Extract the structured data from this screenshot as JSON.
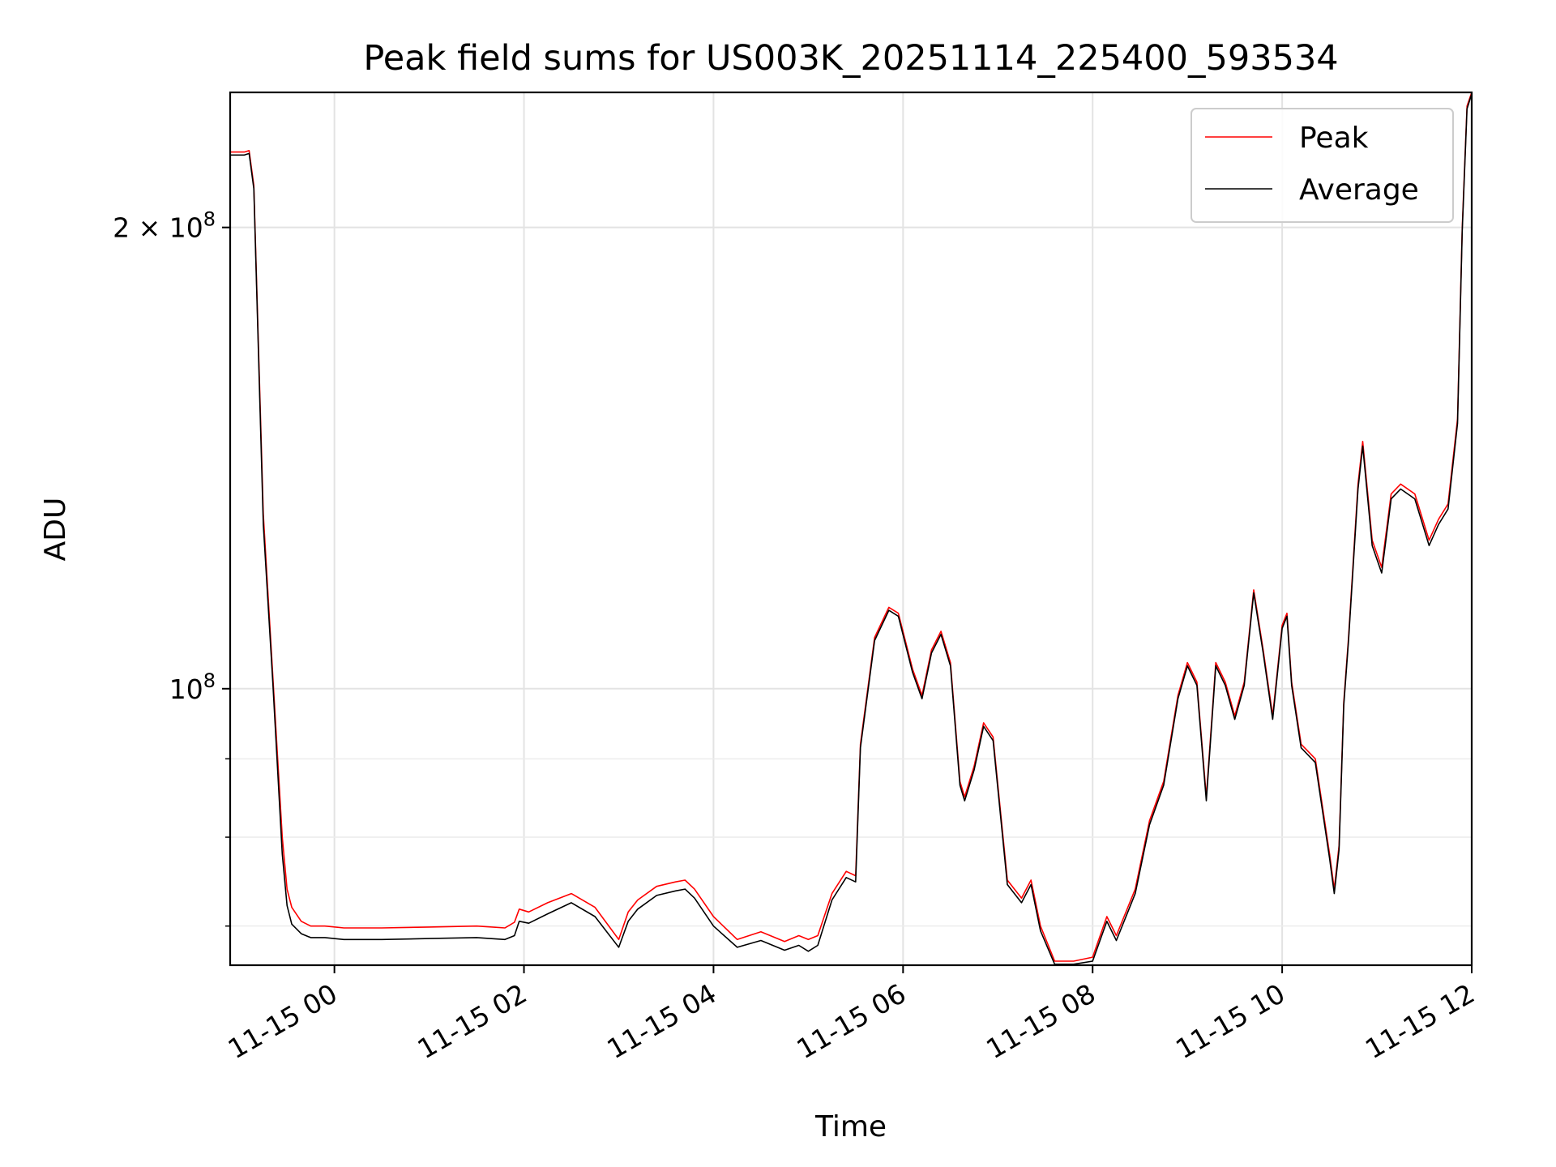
{
  "chart_data": {
    "type": "line",
    "title": "Peak field sums for US003K_20251114_225400_593534",
    "xlabel": "Time",
    "ylabel": "ADU",
    "y_scale": "log",
    "grid": true,
    "legend_position": "top-right",
    "xlim": [
      "11-14 22:54",
      "11-15 12:00"
    ],
    "ylim": [
      66000000,
      245000000
    ],
    "x_ticks": [
      "11-15 00",
      "11-15 02",
      "11-15 04",
      "11-15 06",
      "11-15 08",
      "11-15 10",
      "11-15 12"
    ],
    "x_tick_hours": [
      0,
      2,
      4,
      6,
      8,
      10,
      12
    ],
    "y_major_ticks": [
      {
        "value": 100000000,
        "base": "10",
        "exp": "8",
        "coef": ""
      },
      {
        "value": 200000000,
        "base": "10",
        "exp": "8",
        "coef": "2 × "
      }
    ],
    "y_minor_ticks": [
      70000000,
      80000000,
      90000000
    ],
    "time_x": [
      "11-14 22:54",
      "11-14 23:03",
      "11-14 23:06",
      "11-14 23:09",
      "11-14 23:15",
      "11-14 23:21",
      "11-14 23:27",
      "11-14 23:30",
      "11-14 23:33",
      "11-14 23:39",
      "11-14 23:45",
      "11-14 23:54",
      "11-15 00:06",
      "11-15 00:30",
      "11-15 01:00",
      "11-15 01:30",
      "11-15 01:48",
      "11-15 01:54",
      "11-15 01:57",
      "11-15 02:03",
      "11-15 02:15",
      "11-15 02:30",
      "11-15 02:45",
      "11-15 03:00",
      "11-15 03:06",
      "11-15 03:12",
      "11-15 03:24",
      "11-15 03:36",
      "11-15 03:42",
      "11-15 03:48",
      "11-15 04:00",
      "11-15 04:15",
      "11-15 04:30",
      "11-15 04:45",
      "11-15 04:54",
      "11-15 05:00",
      "11-15 05:06",
      "11-15 05:15",
      "11-15 05:24",
      "11-15 05:30",
      "11-15 05:33",
      "11-15 05:42",
      "11-15 05:51",
      "11-15 05:57",
      "11-15 06:06",
      "11-15 06:12",
      "11-15 06:18",
      "11-15 06:24",
      "11-15 06:30",
      "11-15 06:36",
      "11-15 06:39",
      "11-15 06:45",
      "11-15 06:51",
      "11-15 06:57",
      "11-15 07:06",
      "11-15 07:15",
      "11-15 07:21",
      "11-15 07:27",
      "11-15 07:36",
      "11-15 07:48",
      "11-15 08:00",
      "11-15 08:09",
      "11-15 08:15",
      "11-15 08:27",
      "11-15 08:36",
      "11-15 08:45",
      "11-15 08:54",
      "11-15 09:00",
      "11-15 09:06",
      "11-15 09:12",
      "11-15 09:18",
      "11-15 09:24",
      "11-15 09:30",
      "11-15 09:36",
      "11-15 09:42",
      "11-15 09:48",
      "11-15 09:54",
      "11-15 10:00",
      "11-15 10:03",
      "11-15 10:06",
      "11-15 10:12",
      "11-15 10:21",
      "11-15 10:30",
      "11-15 10:33",
      "11-15 10:36",
      "11-15 10:39",
      "11-15 10:42",
      "11-15 10:48",
      "11-15 10:51",
      "11-15 10:57",
      "11-15 11:03",
      "11-15 11:09",
      "11-15 11:15",
      "11-15 11:24",
      "11-15 11:33",
      "11-15 11:39",
      "11-15 11:45",
      "11-15 11:51",
      "11-15 11:54",
      "11-15 11:57",
      "11-15 12:00"
    ],
    "series": [
      {
        "name": "Peak",
        "color": "#ff0000",
        "values": [
          224000000,
          224000000,
          224500000,
          213000000,
          130000000,
          102000000,
          80000000,
          74000000,
          72000000,
          70500000,
          70000000,
          70000000,
          69800000,
          69800000,
          69900000,
          70000000,
          69800000,
          70400000,
          71800000,
          71500000,
          72500000,
          73500000,
          72000000,
          68600000,
          71500000,
          72800000,
          74300000,
          74800000,
          75000000,
          74000000,
          71000000,
          68600000,
          69400000,
          68400000,
          69000000,
          68600000,
          69000000,
          73500000,
          76000000,
          75500000,
          92000000,
          108000000,
          113000000,
          112000000,
          103000000,
          99000000,
          106000000,
          109000000,
          104000000,
          87000000,
          85000000,
          89000000,
          95000000,
          93000000,
          75000000,
          73000000,
          75000000,
          70000000,
          66400000,
          66400000,
          66800000,
          71000000,
          69000000,
          74000000,
          82000000,
          87000000,
          99000000,
          104000000,
          101000000,
          85000000,
          104000000,
          101000000,
          96000000,
          101000000,
          116000000,
          106000000,
          96000000,
          110000000,
          112000000,
          101000000,
          92000000,
          90000000,
          78000000,
          74000000,
          79000000,
          98000000,
          108000000,
          136000000,
          145000000,
          125000000,
          120000000,
          134000000,
          136000000,
          134000000,
          125000000,
          129000000,
          132000000,
          150000000,
          200000000,
          240000000,
          245000000
        ]
      },
      {
        "name": "Average",
        "color": "#000000",
        "values": [
          223000000,
          223000000,
          223500000,
          212000000,
          128000000,
          101000000,
          78000000,
          72200000,
          70200000,
          69200000,
          68800000,
          68800000,
          68600000,
          68600000,
          68700000,
          68800000,
          68600000,
          69000000,
          70500000,
          70300000,
          71300000,
          72500000,
          71000000,
          67800000,
          70500000,
          71800000,
          73300000,
          73800000,
          74000000,
          73000000,
          70000000,
          67800000,
          68500000,
          67500000,
          68000000,
          67400000,
          68000000,
          72800000,
          75300000,
          74800000,
          91500000,
          107500000,
          112500000,
          111500000,
          102500000,
          98500000,
          105500000,
          108500000,
          103500000,
          86500000,
          84500000,
          88500000,
          94500000,
          92500000,
          74500000,
          72500000,
          74500000,
          69500000,
          66100000,
          66100000,
          66400000,
          70500000,
          68500000,
          73500000,
          81500000,
          86500000,
          98500000,
          103500000,
          100500000,
          84500000,
          103500000,
          100500000,
          95500000,
          100500000,
          115500000,
          105500000,
          95500000,
          109500000,
          111500000,
          100500000,
          91500000,
          89500000,
          77500000,
          73500000,
          78500000,
          97500000,
          107500000,
          135000000,
          144000000,
          124000000,
          119000000,
          133000000,
          135000000,
          133000000,
          124000000,
          128000000,
          131000000,
          149000000,
          199000000,
          239000000,
          244500000
        ]
      }
    ]
  }
}
